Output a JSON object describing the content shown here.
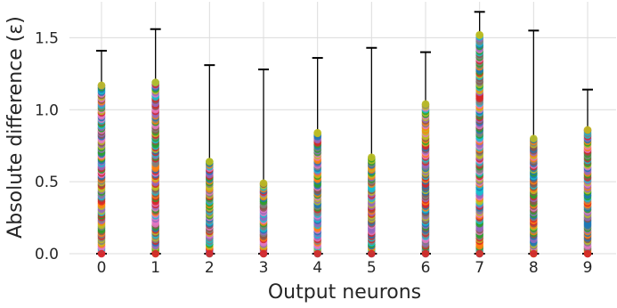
{
  "chart_data": {
    "type": "scatter",
    "title": "",
    "xlabel": "Output neurons",
    "ylabel": "Absolute difference (ε)",
    "x_ticks": [
      "0",
      "1",
      "2",
      "3",
      "4",
      "5",
      "6",
      "7",
      "8",
      "9"
    ],
    "y_ticks": [
      "0.0",
      "0.5",
      "1.0",
      "1.5"
    ],
    "ylim": [
      0,
      1.75
    ],
    "grid": true,
    "series": [
      {
        "x": "0",
        "max_point": 1.17,
        "error_bar_top": 1.41
      },
      {
        "x": "1",
        "max_point": 1.19,
        "error_bar_top": 1.56
      },
      {
        "x": "2",
        "max_point": 0.64,
        "error_bar_top": 1.31
      },
      {
        "x": "3",
        "max_point": 0.49,
        "error_bar_top": 1.28
      },
      {
        "x": "4",
        "max_point": 0.84,
        "error_bar_top": 1.36
      },
      {
        "x": "5",
        "max_point": 0.67,
        "error_bar_top": 1.43
      },
      {
        "x": "6",
        "max_point": 1.04,
        "error_bar_top": 1.4
      },
      {
        "x": "7",
        "max_point": 1.52,
        "error_bar_top": 1.68
      },
      {
        "x": "8",
        "max_point": 0.8,
        "error_bar_top": 1.55
      },
      {
        "x": "9",
        "max_point": 0.86,
        "error_bar_top": 1.14
      }
    ],
    "point_colors": [
      "#1f77b4",
      "#ff7f0e",
      "#2ca02c",
      "#d62728",
      "#9467bd",
      "#8c564b",
      "#e377c2",
      "#7f7f7f",
      "#bcbd22",
      "#17becf"
    ]
  }
}
